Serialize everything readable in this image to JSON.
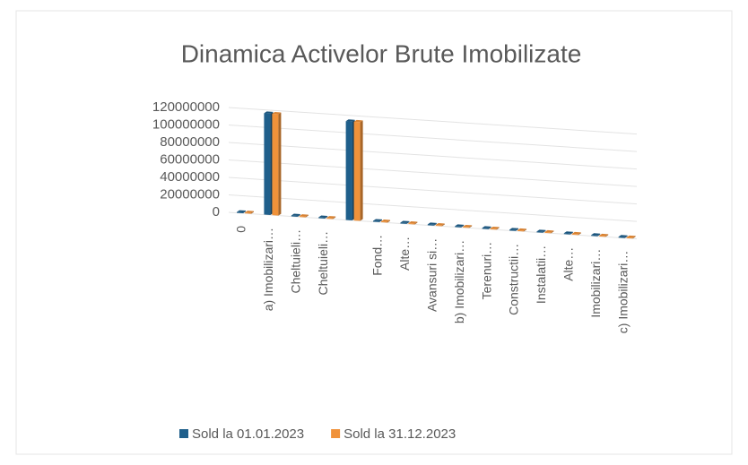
{
  "chart_data": {
    "type": "bar3d",
    "title": "Dinamica Activelor Brute Imobilizate",
    "categories": [
      "0",
      "a) Imobilizari…",
      "Cheltuieli…",
      "Cheltuieli…",
      null,
      "Fond…",
      "Alte…",
      "Avansuri si…",
      "b) Imobilizari…",
      "Terenuri…",
      "Constructii…",
      "Instalatii…",
      "Alte…",
      "Imobilizari…",
      "c) Imobilizari…"
    ],
    "series": [
      {
        "name": "Sold la 01.01.2023",
        "color": "#1f5f8b",
        "values": [
          0,
          115000000,
          0,
          0,
          112000000,
          0,
          0,
          0,
          0,
          0,
          0,
          0,
          0,
          0,
          0
        ]
      },
      {
        "name": "Sold la 31.12.2023",
        "color": "#f0923a",
        "values": [
          0,
          115000000,
          0,
          0,
          112000000,
          0,
          0,
          0,
          0,
          0,
          0,
          0,
          0,
          0,
          0
        ]
      }
    ],
    "ylim": [
      0,
      120000000
    ],
    "yticks": [
      0,
      20000000,
      40000000,
      60000000,
      80000000,
      100000000,
      120000000
    ],
    "grid": true,
    "legend": "bottom"
  }
}
